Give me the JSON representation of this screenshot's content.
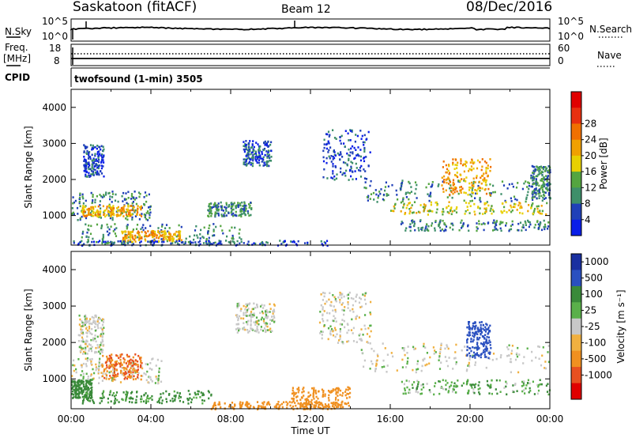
{
  "header": {
    "station": "Saskatoon (fitACF)",
    "beam": "Beam 12",
    "date": "08/Dec/2016"
  },
  "status": {
    "nsky_label": "N.Sky",
    "nsky_ticks": [
      "10^5",
      "10^0"
    ],
    "nsearch_label": "N.Search",
    "freq_label": "Freq.",
    "freq_unit": "[MHz]",
    "freq_ticks": [
      "18",
      "8"
    ],
    "nave_ticks": [
      "60",
      "0"
    ],
    "nave_label": "Nave",
    "cpid_label": "CPID",
    "cpid_text": "twofsound (1-min) 3505"
  },
  "colors": {
    "power_scale": [
      "#0a1ee8",
      "#2040b8",
      "#3e8f6a",
      "#54a540",
      "#e8d000",
      "#f0a000",
      "#f07000",
      "#e83010",
      "#e00000"
    ],
    "velocity_scale": [
      "#e00000",
      "#e85020",
      "#f09020",
      "#f0b040",
      "#c8c8c8",
      "#5ab04a",
      "#3a8a3a",
      "#2a50c0",
      "#1a30a0"
    ],
    "trace": "#000000"
  },
  "chart_data": [
    {
      "type": "heatmap",
      "panel": "power",
      "ylabel": "Slant Range [km]",
      "yticks": [
        "1000",
        "2000",
        "3000",
        "4000"
      ],
      "ylim": [
        180,
        4500
      ],
      "xlim": [
        0,
        24
      ],
      "colorbar_label": "Power [dB]",
      "colorbar_ticks": [
        "4",
        "8",
        "12",
        "16",
        "20",
        "24",
        "28"
      ],
      "bands": [
        {
          "t": [
            0.6,
            1.6
          ],
          "r": [
            2100,
            3000
          ],
          "db": 8
        },
        {
          "t": [
            0.0,
            4.0
          ],
          "r": [
            900,
            1700
          ],
          "db": 12
        },
        {
          "t": [
            0.5,
            3.5
          ],
          "r": [
            1000,
            1300
          ],
          "db": 24
        },
        {
          "t": [
            0.5,
            8.5
          ],
          "r": [
            250,
            800
          ],
          "db": 12
        },
        {
          "t": [
            2.5,
            5.5
          ],
          "r": [
            300,
            600
          ],
          "db": 24
        },
        {
          "t": [
            0.0,
            13.0
          ],
          "r": [
            190,
            330
          ],
          "db": 8
        },
        {
          "t": [
            6.8,
            9.0
          ],
          "r": [
            1000,
            1400
          ],
          "db": 12
        },
        {
          "t": [
            8.6,
            10.0
          ],
          "r": [
            2400,
            3100
          ],
          "db": 8
        },
        {
          "t": [
            12.6,
            15.0
          ],
          "r": [
            2000,
            3400
          ],
          "db": 8
        },
        {
          "t": [
            14.5,
            24.0
          ],
          "r": [
            1400,
            2000
          ],
          "db": 12
        },
        {
          "t": [
            15.8,
            24.0
          ],
          "r": [
            1050,
            1400
          ],
          "db": 20
        },
        {
          "t": [
            18.5,
            21.0
          ],
          "r": [
            1600,
            2600
          ],
          "db": 24
        },
        {
          "t": [
            16.5,
            24.0
          ],
          "r": [
            600,
            900
          ],
          "db": 12
        },
        {
          "t": [
            23.0,
            24.0
          ],
          "r": [
            1500,
            2400
          ],
          "db": 12
        }
      ]
    },
    {
      "type": "heatmap",
      "panel": "velocity",
      "ylabel": "Slant Range [km]",
      "yticks": [
        "1000",
        "2000",
        "3000",
        "4000"
      ],
      "ylim": [
        180,
        4500
      ],
      "xlim": [
        0,
        24
      ],
      "xticks": [
        "00:00",
        "04:00",
        "08:00",
        "12:00",
        "16:00",
        "20:00",
        "00:00"
      ],
      "xlabel": "Time UT",
      "colorbar_label": "Velocity [m s⁻¹]",
      "colorbar_ticks": [
        "1000",
        "500",
        "100",
        "25",
        "-25",
        "-100",
        "-500",
        "-1000"
      ],
      "bands": [
        {
          "t": [
            0.3,
            1.6
          ],
          "r": [
            1700,
            2800
          ],
          "v": 0
        },
        {
          "t": [
            0.0,
            4.5
          ],
          "r": [
            900,
            1600
          ],
          "v": 0
        },
        {
          "t": [
            1.5,
            3.5
          ],
          "r": [
            1000,
            1700
          ],
          "v": -300
        },
        {
          "t": [
            0.0,
            1.0
          ],
          "r": [
            500,
            1000
          ],
          "v": 120
        },
        {
          "t": [
            0.5,
            7.0
          ],
          "r": [
            350,
            700
          ],
          "v": 80
        },
        {
          "t": [
            7.0,
            13.5
          ],
          "r": [
            190,
            400
          ],
          "v": -200
        },
        {
          "t": [
            11.0,
            14.0
          ],
          "r": [
            250,
            800
          ],
          "v": -250
        },
        {
          "t": [
            8.2,
            10.2
          ],
          "r": [
            2300,
            3100
          ],
          "v": 0
        },
        {
          "t": [
            12.4,
            15.0
          ],
          "r": [
            2000,
            3400
          ],
          "v": 0
        },
        {
          "t": [
            14.5,
            24.0
          ],
          "r": [
            1200,
            2000
          ],
          "v": 0
        },
        {
          "t": [
            19.8,
            21.0
          ],
          "r": [
            1600,
            2600
          ],
          "v": 400
        },
        {
          "t": [
            16.5,
            24.0
          ],
          "r": [
            600,
            1000
          ],
          "v": 50
        }
      ]
    }
  ]
}
